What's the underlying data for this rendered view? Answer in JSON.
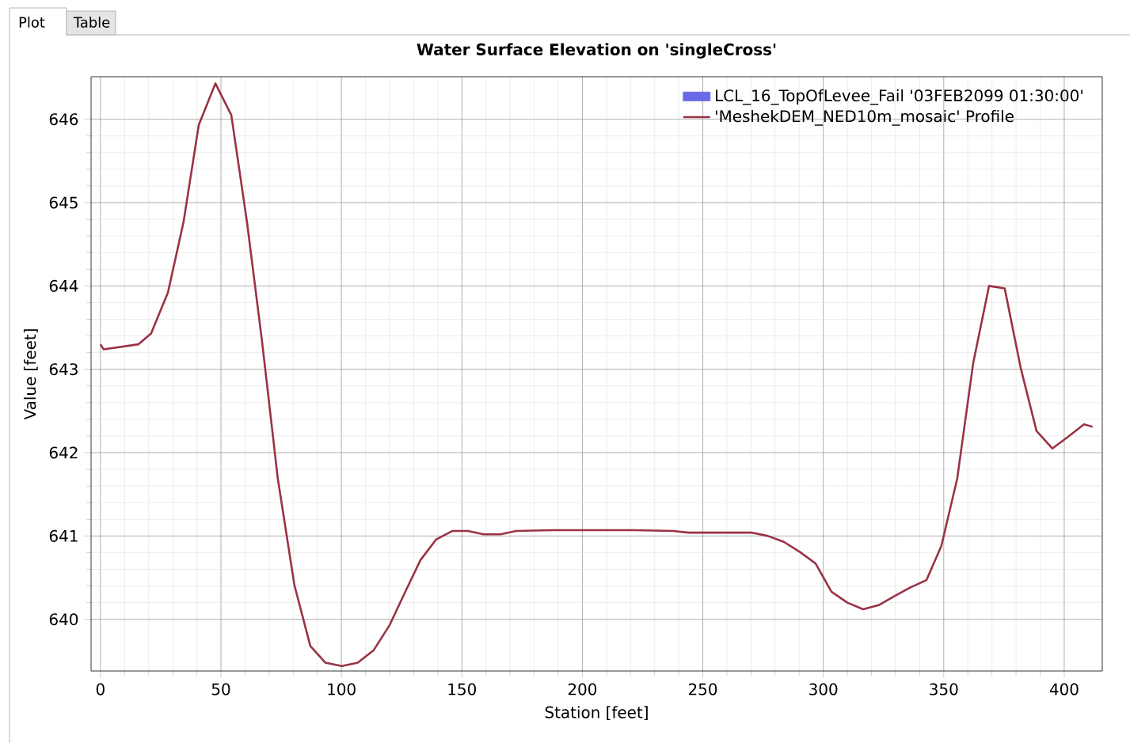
{
  "chart_data": {
    "type": "line",
    "title": "Water Surface Elevation on 'singleCross'",
    "xlabel": "Station [feet]",
    "ylabel": "Value [feet]",
    "annotations": [
      "Plot",
      "Table"
    ],
    "x": [
      0,
      1.3,
      15.8,
      21,
      28,
      34.5,
      40.8,
      47.7,
      54.3,
      60.8,
      67,
      73.6,
      80.5,
      87.1,
      93.3,
      100.2,
      106.8,
      113.4,
      120,
      126.5,
      132.8,
      139.4,
      146,
      152.5,
      159,
      166,
      172.6,
      188,
      221,
      237.6,
      244,
      270.5,
      277,
      283.6,
      290.2,
      296.8,
      303.4,
      310,
      316.5,
      323,
      329.7,
      336,
      342.8,
      349,
      355.6,
      362.2,
      368.8,
      375.3,
      381.9,
      388.5,
      395.1,
      401.6,
      408.2,
      411.8
    ],
    "series": [
      {
        "name": "LCL_16_TopOfLevee_Fail '03FEB2099 01:30:00'",
        "type": "area",
        "color": "#6a6ae8",
        "values": [
          null,
          null,
          null,
          null,
          null,
          null,
          null,
          null,
          null,
          null,
          null,
          null,
          null,
          null,
          null,
          null,
          null,
          null,
          null,
          null,
          null,
          null,
          null,
          null,
          null,
          null,
          null,
          null,
          null,
          null,
          null,
          null,
          null,
          null,
          null,
          null,
          null,
          null,
          null,
          null,
          null,
          null,
          null,
          null,
          null,
          null,
          null,
          null,
          null,
          null,
          null,
          null,
          null,
          null
        ]
      },
      {
        "name": "'MeshekDEM_NED10m_mosaic' Profile",
        "color": "#993344",
        "values": [
          643.3,
          643.24,
          643.3,
          643.43,
          643.92,
          644.77,
          645.93,
          646.43,
          646.05,
          644.77,
          643.35,
          641.69,
          640.41,
          639.68,
          639.48,
          639.44,
          639.48,
          639.63,
          639.93,
          640.33,
          640.71,
          640.96,
          641.06,
          641.06,
          641.02,
          641.02,
          641.06,
          641.07,
          641.07,
          641.06,
          641.04,
          641.04,
          641.0,
          640.93,
          640.81,
          640.67,
          640.33,
          640.2,
          640.12,
          640.17,
          640.28,
          640.38,
          640.47,
          640.88,
          641.69,
          643.07,
          644.0,
          643.97,
          643.02,
          642.26,
          642.05,
          642.19,
          642.34,
          642.31
        ]
      }
    ],
    "xlim": [
      -3.9,
      415.8
    ],
    "ylim": [
      639.38,
      646.51
    ],
    "xticks": [
      0,
      50,
      100,
      150,
      200,
      250,
      300,
      350,
      400
    ],
    "yticks": [
      640,
      641,
      642,
      643,
      644,
      645,
      646
    ],
    "grid": true,
    "legend": "top right",
    "marker": "none",
    "line_style": "solid"
  }
}
